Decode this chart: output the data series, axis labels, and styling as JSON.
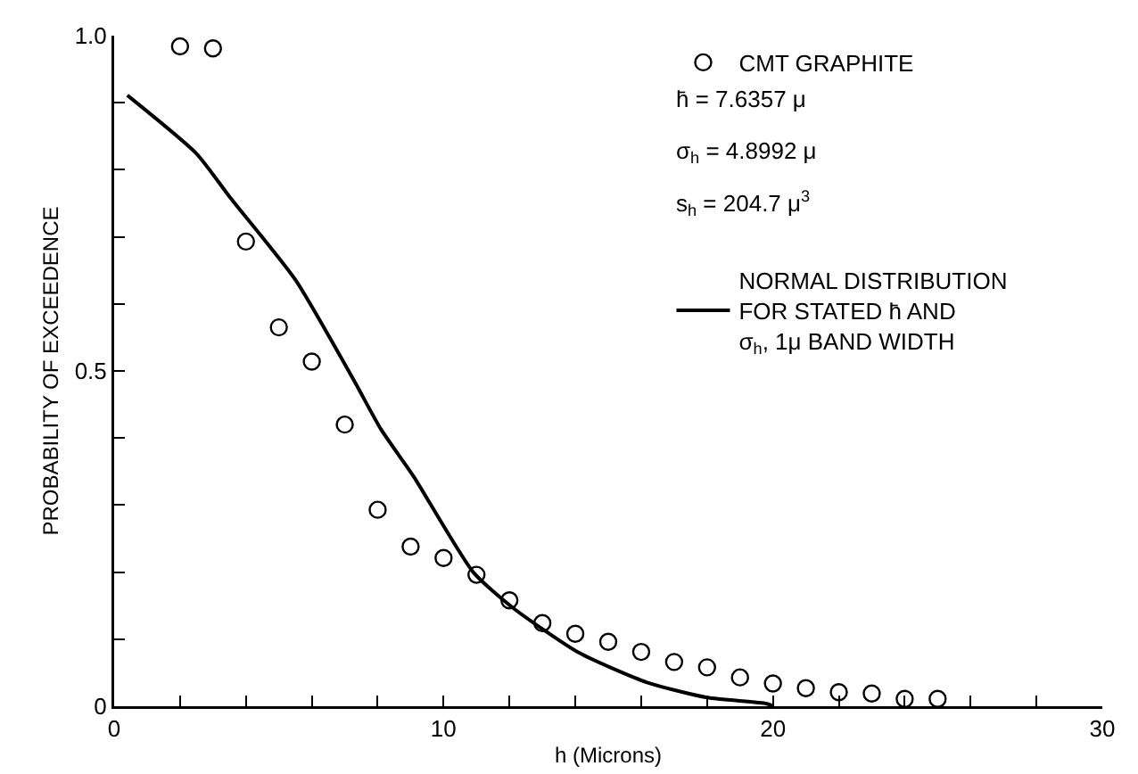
{
  "chart_data": {
    "type": "scatter",
    "xlabel": "h (Microns)",
    "ylabel": "PROBABILITY OF EXCEEDENCE",
    "xlim": [
      0,
      30
    ],
    "ylim": [
      0,
      1.0
    ],
    "xticks": [
      0,
      {
        "value": 2,
        "label": null
      },
      {
        "value": 4,
        "label": null
      },
      {
        "value": 6,
        "label": null
      },
      {
        "value": 8,
        "label": null
      },
      10,
      {
        "value": 12,
        "label": null
      },
      {
        "value": 14,
        "label": null
      },
      {
        "value": 16,
        "label": null
      },
      {
        "value": 18,
        "label": null
      },
      20,
      {
        "value": 22,
        "label": null
      },
      {
        "value": 24,
        "label": null
      },
      {
        "value": 26,
        "label": null
      },
      {
        "value": 28,
        "label": null
      },
      30
    ],
    "yticks": [
      0,
      {
        "value": 0.1,
        "label": null
      },
      {
        "value": 0.2,
        "label": null
      },
      {
        "value": 0.3,
        "label": null
      },
      {
        "value": 0.4,
        "label": null
      },
      0.5,
      {
        "value": 0.6,
        "label": null
      },
      {
        "value": 0.7,
        "label": null
      },
      {
        "value": 0.8,
        "label": null
      },
      {
        "value": 0.9,
        "label": null
      },
      {
        "value": 1,
        "label": "1.0"
      }
    ],
    "grid": false,
    "legend": "top right",
    "annotations": [
      "h̄ = 7.6357 μ",
      "σ$_{h}$ = 4.8992 μ",
      "s$_{h}$ = 204.7 μ$^{3}$"
    ],
    "series": [
      {
        "name": "CMT GRAPHITE",
        "type": "scatter",
        "marker": "circle",
        "color": "#000000",
        "x": [
          2,
          3,
          4,
          5,
          6,
          7,
          8,
          9,
          10,
          11,
          12,
          13,
          14,
          15,
          16,
          17,
          18,
          19,
          20,
          21,
          22,
          23,
          24,
          25
        ],
        "values": [
          0.984,
          0.981,
          0.693,
          0.565,
          0.514,
          0.42,
          0.293,
          0.238,
          0.221,
          0.196,
          0.158,
          0.124,
          0.108,
          0.096,
          0.081,
          0.066,
          0.058,
          0.043,
          0.034,
          0.027,
          0.021,
          0.019,
          0.011,
          0.011
        ]
      },
      {
        "name": "NORMAL DISTRIBUTION FOR STATED h̄ AND σ$_{h}$, 1μ BAND WIDTH",
        "type": "line",
        "line_style": "solid",
        "color": "#000000",
        "x": [
          0.4,
          2.5,
          3.5,
          5.5,
          7.3,
          8.1,
          9.1,
          10.9,
          12.1,
          14.1,
          16.2,
          18,
          19.8,
          20
        ],
        "values": [
          0.911,
          0.824,
          0.76,
          0.636,
          0.484,
          0.413,
          0.342,
          0.2,
          0.147,
          0.08,
          0.035,
          0.013,
          0.004,
          0
        ]
      }
    ]
  }
}
